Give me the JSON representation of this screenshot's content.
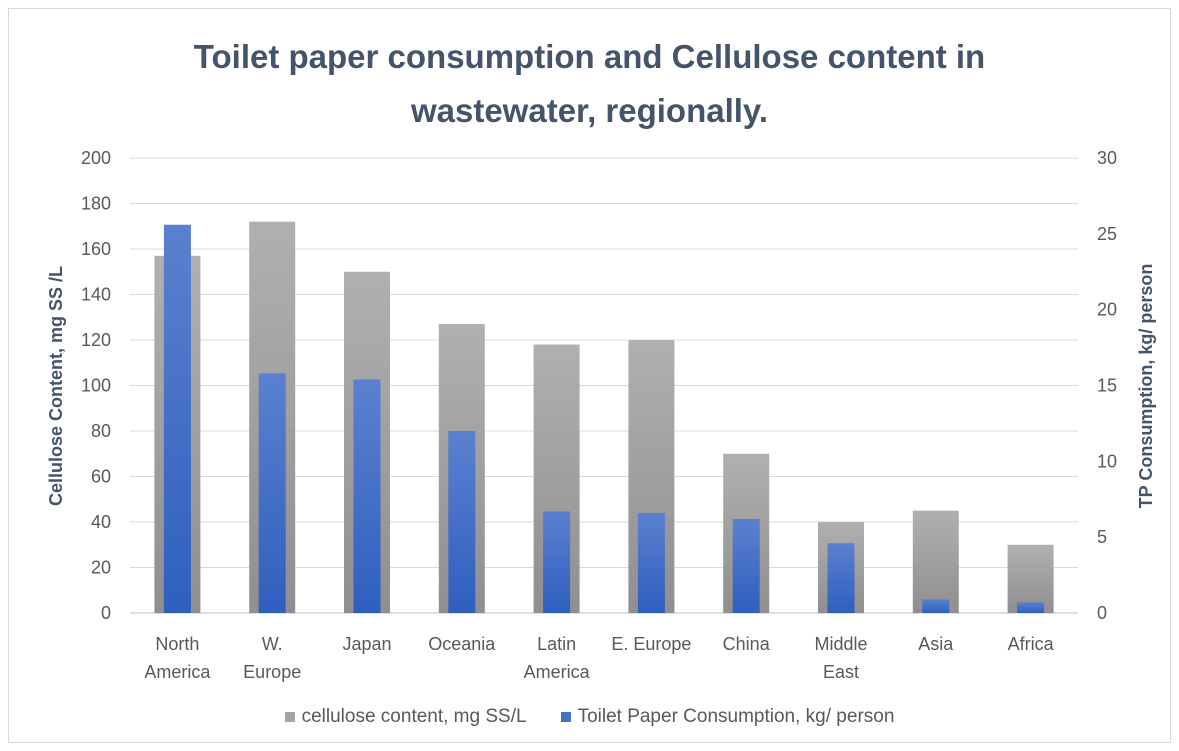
{
  "chart_data": {
    "type": "bar",
    "title": "Toilet paper consumption and Cellulose content in wastewater, regionally.",
    "title_lines": [
      "Toilet paper consumption and Cellulose content in",
      "wastewater, regionally."
    ],
    "categories": [
      "North America",
      "W. Europe",
      "Japan",
      "Oceania",
      "Latin America",
      "E. Europe",
      "China",
      "Middle East",
      "Asia",
      "Africa"
    ],
    "category_lines": [
      [
        "North",
        "America"
      ],
      [
        "W.",
        "Europe"
      ],
      [
        "Japan"
      ],
      [
        "Oceania"
      ],
      [
        "Latin",
        "America"
      ],
      [
        "E. Europe"
      ],
      [
        "China"
      ],
      [
        "Middle",
        "East"
      ],
      [
        "Asia"
      ],
      [
        "Africa"
      ]
    ],
    "series": [
      {
        "name": "cellulose content, mg SS/L",
        "axis": "left",
        "color": "#a5a5a5",
        "values": [
          157,
          172,
          150,
          127,
          118,
          120,
          70,
          40,
          45,
          30
        ]
      },
      {
        "name": "Toilet Paper Consumption, kg/ person",
        "axis": "right",
        "color": "#4472c4",
        "values": [
          25.6,
          15.8,
          15.4,
          12.0,
          6.7,
          6.6,
          6.2,
          4.6,
          0.9,
          0.7
        ]
      }
    ],
    "ylabel": "Cellulose Content, mg SS /L",
    "y2label": "TP Consumption, kg/ person",
    "ylim": [
      0,
      200
    ],
    "y2lim": [
      0,
      30
    ],
    "yticks": [
      0,
      20,
      40,
      60,
      80,
      100,
      120,
      140,
      160,
      180,
      200
    ],
    "y2ticks": [
      0,
      5,
      10,
      15,
      20,
      25,
      30
    ],
    "grid": true,
    "legend": "bottom"
  }
}
